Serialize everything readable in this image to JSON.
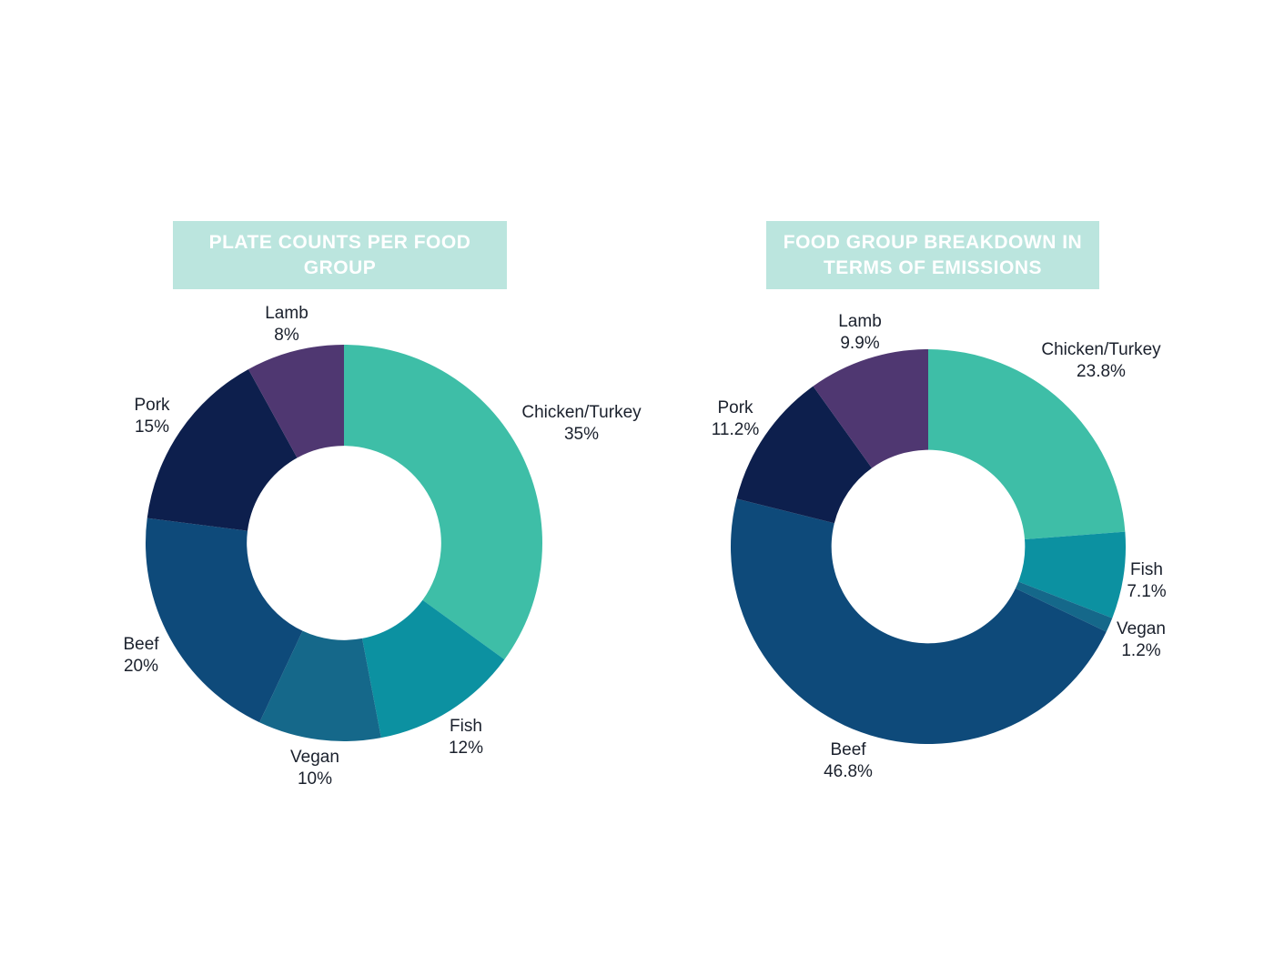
{
  "styles": {
    "page_background": "#FFFFFF",
    "title_background": "#BBE5DE",
    "title_text_color": "#FFFFFF",
    "label_text_color": "#1A202C"
  },
  "chart_data": [
    {
      "type": "pie",
      "variant": "donut",
      "title": "PLATE COUNTS PER FOOD GROUP",
      "categories": [
        "Chicken/Turkey",
        "Fish",
        "Vegan",
        "Beef",
        "Pork",
        "Lamb"
      ],
      "values": [
        35,
        12,
        10,
        20,
        15,
        8
      ],
      "value_labels": [
        "35%",
        "12%",
        "10%",
        "20%",
        "15%",
        "8%"
      ],
      "colors": [
        "#3EBEA7",
        "#0C91A1",
        "#15688A",
        "#0E4A7A",
        "#0D1F4D",
        "#4F3771"
      ],
      "start_angle_deg": 0,
      "direction": "clockwise",
      "hole_ratio": 0.49,
      "labels_position": "outside",
      "legend": "none"
    },
    {
      "type": "pie",
      "variant": "donut",
      "title": "FOOD GROUP BREAKDOWN IN TERMS OF EMISSIONS",
      "categories": [
        "Chicken/Turkey",
        "Fish",
        "Vegan",
        "Beef",
        "Pork",
        "Lamb"
      ],
      "values": [
        23.8,
        7.1,
        1.2,
        46.8,
        11.2,
        9.9
      ],
      "value_labels": [
        "23.8%",
        "7.1%",
        "1.2%",
        "46.8%",
        "11.2%",
        "9.9%"
      ],
      "colors": [
        "#3EBEA7",
        "#0C91A1",
        "#15688A",
        "#0E4A7A",
        "#0D1F4D",
        "#4F3771"
      ],
      "start_angle_deg": 0,
      "direction": "clockwise",
      "hole_ratio": 0.49,
      "labels_position": "outside",
      "legend": "none"
    }
  ]
}
